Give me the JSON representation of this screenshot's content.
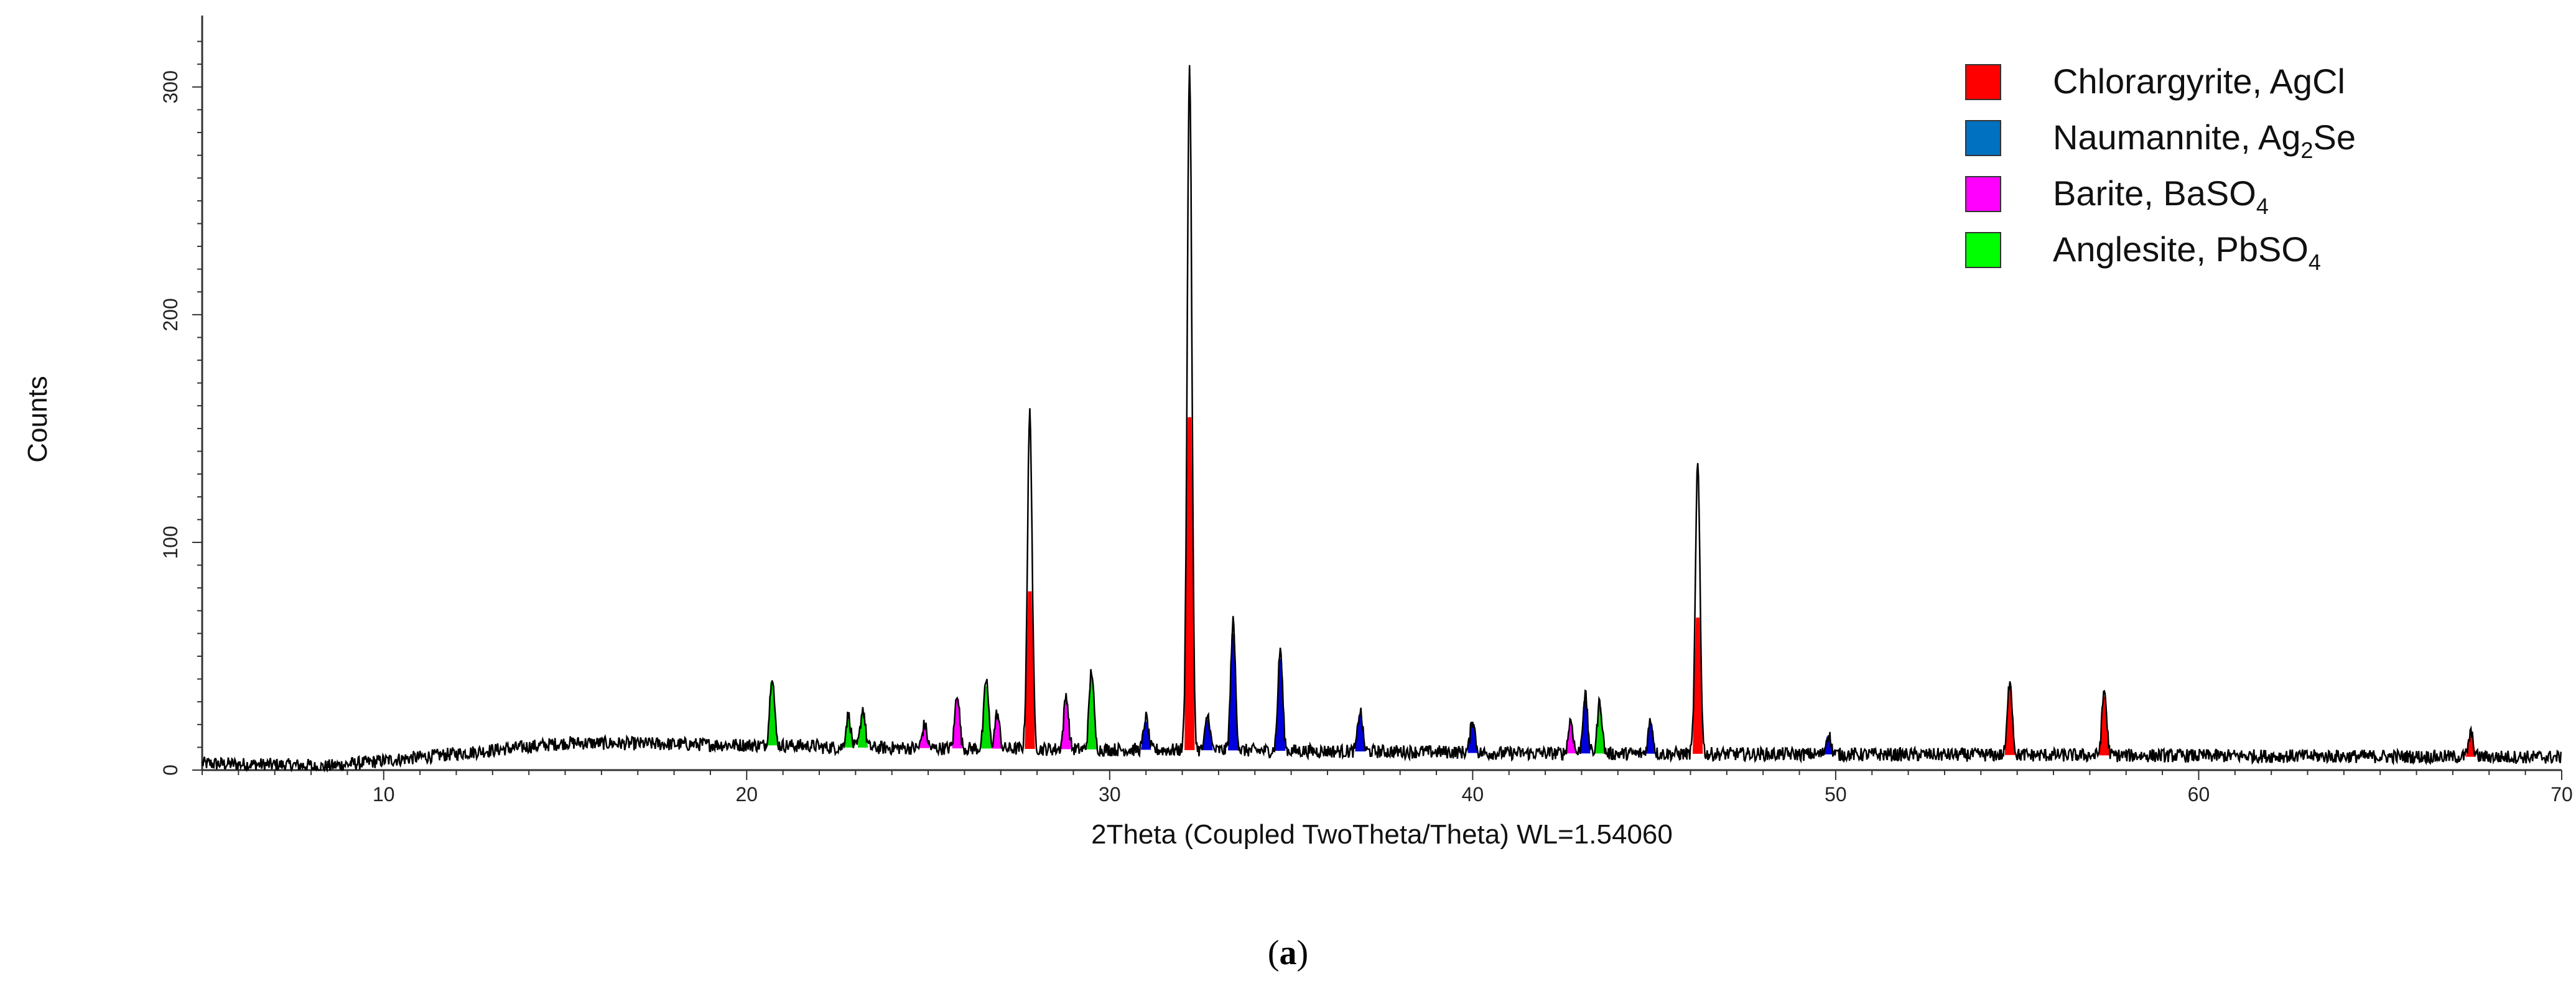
{
  "chart_data": {
    "type": "line",
    "xlabel": "2Theta (Coupled TwoTheta/Theta) WL=1.54060",
    "ylabel": "Counts",
    "xlim": [
      5,
      70
    ],
    "ylim": [
      0,
      330
    ],
    "x_ticks": [
      10,
      20,
      30,
      40,
      50,
      60,
      70
    ],
    "y_ticks": [
      0,
      100,
      200,
      300
    ],
    "grid": false,
    "legend_position": "top-right",
    "legend": [
      {
        "name": "Chlorargyrite, AgCl",
        "base": "Chlorargyrite, AgCl",
        "sub": "",
        "tail": "",
        "color": "#ff0000"
      },
      {
        "name": "Naumannite, Ag2Se",
        "base": "Naumannite, Ag",
        "sub": "2",
        "tail": "Se",
        "color": "#0070c0"
      },
      {
        "name": "Barite, BaSO4",
        "base": "Barite, BaSO",
        "sub": "4",
        "tail": "",
        "color": "#ff00ff"
      },
      {
        "name": "Anglesite, PbSO4",
        "base": "Anglesite, PbSO",
        "sub": "4",
        "tail": "",
        "color": "#00ff00"
      }
    ],
    "colors": {
      "trace": "#000000",
      "AgCl": "#ff0000",
      "Ag2Se": "#0000dd",
      "BaSO4": "#ff00ff",
      "PbSO4": "#00dd00"
    },
    "peaks": [
      {
        "x": 20.7,
        "y": 42,
        "phase": "PbSO4"
      },
      {
        "x": 22.8,
        "y": 24,
        "phase": "PbSO4"
      },
      {
        "x": 23.2,
        "y": 27,
        "phase": "PbSO4"
      },
      {
        "x": 24.9,
        "y": 20,
        "phase": "BaSO4"
      },
      {
        "x": 25.8,
        "y": 34,
        "phase": "BaSO4"
      },
      {
        "x": 26.6,
        "y": 40,
        "phase": "PbSO4"
      },
      {
        "x": 26.9,
        "y": 25,
        "phase": "BaSO4"
      },
      {
        "x": 27.8,
        "y": 157,
        "phase": "AgCl"
      },
      {
        "x": 28.8,
        "y": 33,
        "phase": "BaSO4"
      },
      {
        "x": 29.5,
        "y": 44,
        "phase": "PbSO4"
      },
      {
        "x": 31.0,
        "y": 23,
        "phase": "Ag2Se"
      },
      {
        "x": 32.2,
        "y": 310,
        "phase": "AgCl"
      },
      {
        "x": 32.7,
        "y": 24,
        "phase": "Ag2Se"
      },
      {
        "x": 33.4,
        "y": 65,
        "phase": "Ag2Se"
      },
      {
        "x": 34.7,
        "y": 53,
        "phase": "Ag2Se"
      },
      {
        "x": 36.9,
        "y": 26,
        "phase": "Ag2Se"
      },
      {
        "x": 40.0,
        "y": 22,
        "phase": "Ag2Se"
      },
      {
        "x": 42.7,
        "y": 22,
        "phase": "BaSO4"
      },
      {
        "x": 43.1,
        "y": 33,
        "phase": "Ag2Se"
      },
      {
        "x": 43.5,
        "y": 30,
        "phase": "PbSO4"
      },
      {
        "x": 44.9,
        "y": 22,
        "phase": "Ag2Se"
      },
      {
        "x": 46.2,
        "y": 134,
        "phase": "AgCl"
      },
      {
        "x": 49.8,
        "y": 16,
        "phase": "Ag2Se"
      },
      {
        "x": 54.8,
        "y": 40,
        "phase": "AgCl"
      },
      {
        "x": 57.4,
        "y": 35,
        "phase": "AgCl"
      },
      {
        "x": 67.5,
        "y": 16,
        "phase": "AgCl"
      }
    ]
  },
  "caption": {
    "letter": "a"
  }
}
